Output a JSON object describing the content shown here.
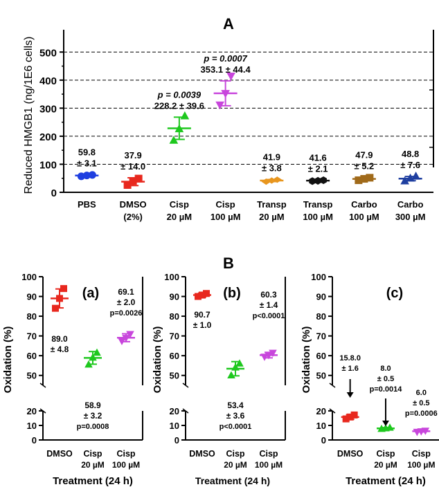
{
  "panel_A_letter": "A",
  "panel_B_letter": "B",
  "chart_data": [
    {
      "type": "scatter",
      "panel": "A",
      "ylabel": "Reduced HMGB1 (ng/1E6 cells)",
      "xlabel": "",
      "ylim": [
        0,
        550
      ],
      "yticks": [
        0,
        100,
        200,
        300,
        400,
        500
      ],
      "grid": "dashed horizontal lines at 100, 200, 300, 400, 500",
      "groups": [
        {
          "label": [
            "PBS",
            ""
          ],
          "color": "#1f3fe0",
          "marker": "circle",
          "points": [
            57,
            60,
            62
          ],
          "mean": 59.8,
          "err": 3.1,
          "annot": [
            "59.8",
            "± 3.1"
          ],
          "p": ""
        },
        {
          "label": [
            "DMSO",
            "(2%)"
          ],
          "color": "#e8281e",
          "marker": "square",
          "points": [
            26,
            40,
            49
          ],
          "mean": 37.9,
          "err": 14.0,
          "annot": [
            "37.9",
            "± 14.0"
          ],
          "p": ""
        },
        {
          "label": [
            "Cisp",
            "20 µM"
          ],
          "color": "#1ec81e",
          "marker": "triangle-up",
          "points": [
            185,
            226,
            272
          ],
          "mean": 228.2,
          "err": 39.6,
          "annot": [
            "228.2 ± 39.6"
          ],
          "p": "p = 0.0039"
        },
        {
          "label": [
            "Cisp",
            "100 µM"
          ],
          "color": "#c846dc",
          "marker": "triangle-down",
          "points": [
            312,
            353,
            415
          ],
          "mean": 353.1,
          "err": 44.4,
          "annot": [
            "353.1 ± 44.4"
          ],
          "p": "p = 0.0007"
        },
        {
          "label": [
            "Transp",
            "20 µM"
          ],
          "color": "#e8961e",
          "marker": "diamond",
          "points": [
            38,
            42,
            45
          ],
          "mean": 41.9,
          "err": 3.8,
          "annot": [
            "41.9",
            "± 3.8"
          ],
          "p": ""
        },
        {
          "label": [
            "Transp",
            "100 µM"
          ],
          "color": "#111111",
          "marker": "hexagon",
          "points": [
            40,
            41,
            43
          ],
          "mean": 41.6,
          "err": 2.1,
          "annot": [
            "41.6",
            "± 2.1"
          ],
          "p": ""
        },
        {
          "label": [
            "Carbo",
            "100 µM"
          ],
          "color": "#a06a1a",
          "marker": "square",
          "points": [
            43,
            48,
            52
          ],
          "mean": 47.9,
          "err": 5.2,
          "annot": [
            "47.9",
            "± 5.2"
          ],
          "p": ""
        },
        {
          "label": [
            "Carbo",
            "300 µM"
          ],
          "color": "#1f3fa0",
          "marker": "triangle-up",
          "points": [
            40,
            50,
            57
          ],
          "mean": 48.8,
          "err": 7.6,
          "annot": [
            "48.8",
            "± 7.6"
          ],
          "p": ""
        }
      ]
    },
    {
      "type": "scatter",
      "panel": "B(a)",
      "tag": "(a)",
      "ylabel": "Oxidation (%)",
      "xlabel": "Treatment (24 h)",
      "axis_break": true,
      "lower_yticks": [
        0,
        10,
        20
      ],
      "upper_yticks": [
        50,
        60,
        70,
        80,
        90,
        100
      ],
      "groups": [
        {
          "label": [
            "DMSO",
            ""
          ],
          "color": "#e8281e",
          "marker": "square",
          "points": [
            84,
            89,
            94
          ],
          "mean": 89.0,
          "err": 4.8,
          "annot": [
            "89.0",
            "± 4.8"
          ]
        },
        {
          "label": [
            "Cisp",
            "20 µM"
          ],
          "color": "#1ec81e",
          "marker": "triangle-up",
          "points": [
            55.5,
            59,
            61.5
          ],
          "mean": 58.9,
          "err": 3.2,
          "annot": [
            "58.9",
            "± 3.2",
            "p=0.0008"
          ]
        },
        {
          "label": [
            "Cisp",
            "100 µM"
          ],
          "color": "#c846dc",
          "marker": "triangle-down",
          "points": [
            67.5,
            69,
            71
          ],
          "mean": 69.1,
          "err": 2.0,
          "annot": [
            "69.1",
            "± 2.0",
            "p=0.0026"
          ]
        }
      ]
    },
    {
      "type": "scatter",
      "panel": "B(b)",
      "tag": "(b)",
      "ylabel": "Oxidation (%)",
      "xlabel": "Treatment (24 h)",
      "axis_break": true,
      "lower_yticks": [
        0,
        10,
        20
      ],
      "upper_yticks": [
        50,
        60,
        70,
        80,
        90,
        100
      ],
      "groups": [
        {
          "label": [
            "DMSO",
            ""
          ],
          "color": "#e8281e",
          "marker": "square",
          "points": [
            90,
            90.7,
            91.5
          ],
          "mean": 90.7,
          "err": 1.0,
          "annot": [
            "90.7",
            "± 1.0"
          ]
        },
        {
          "label": [
            "Cisp",
            "20 µM"
          ],
          "color": "#1ec81e",
          "marker": "triangle-up",
          "points": [
            50,
            54,
            56
          ],
          "mean": 53.4,
          "err": 3.6,
          "annot": [
            "53.4",
            "± 3.6",
            "p<0.0001"
          ]
        },
        {
          "label": [
            "Cisp",
            "100 µM"
          ],
          "color": "#c846dc",
          "marker": "triangle-down",
          "points": [
            59.5,
            60.3,
            61.5
          ],
          "mean": 60.3,
          "err": 1.4,
          "annot": [
            "60.3",
            "± 1.4",
            "p<0.0001"
          ]
        }
      ]
    },
    {
      "type": "scatter",
      "panel": "B(c)",
      "tag": "(c)",
      "ylabel": "Oxidation (%)",
      "xlabel": "Treatment (24 h)",
      "axis_break": true,
      "lower_yticks": [
        0,
        10,
        20
      ],
      "upper_yticks": [
        50,
        60,
        70,
        80,
        90,
        100
      ],
      "groups": [
        {
          "label": [
            "DMSO",
            ""
          ],
          "color": "#e8281e",
          "marker": "square",
          "points": [
            14.5,
            15.8,
            17.2
          ],
          "mean": 15.8,
          "err": 1.6,
          "annot": [
            "15.8.0",
            "± 1.6"
          ]
        },
        {
          "label": [
            "Cisp",
            "20 µM"
          ],
          "color": "#1ec81e",
          "marker": "triangle-up",
          "points": [
            7.6,
            8.0,
            8.4
          ],
          "mean": 8.0,
          "err": 0.5,
          "annot": [
            "8.0",
            "± 0.5",
            "p=0.0014"
          ]
        },
        {
          "label": [
            "Cisp",
            "100 µM"
          ],
          "color": "#c846dc",
          "marker": "triangle-down",
          "points": [
            5.6,
            6.0,
            6.4
          ],
          "mean": 6.0,
          "err": 0.5,
          "annot": [
            "6.0",
            "± 0.5",
            "p=0.0006"
          ]
        }
      ]
    }
  ]
}
